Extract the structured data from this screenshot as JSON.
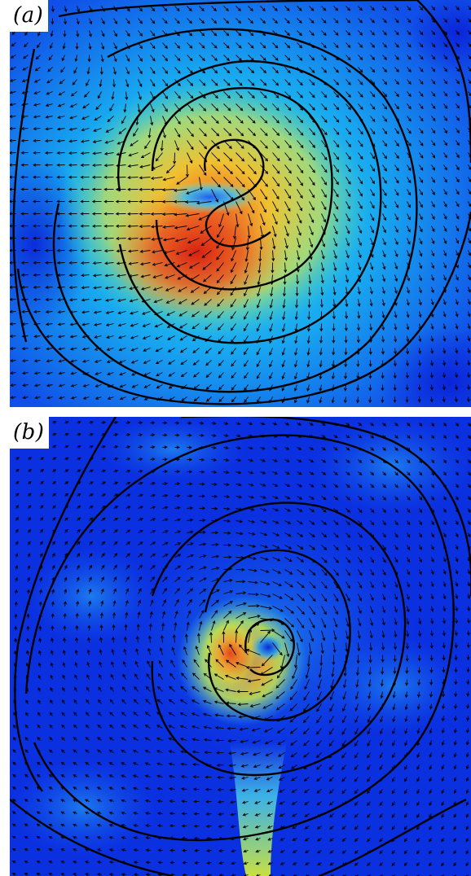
{
  "figure": {
    "panels": [
      {
        "label": "(a)"
      },
      {
        "label": "(b)"
      }
    ]
  },
  "colors": {
    "background_low": "#0a2ee8",
    "mid": "#14b4f0",
    "high": "#f0e030",
    "peak": "#e02818",
    "contour": "#000000",
    "arrow": "#000000"
  }
}
